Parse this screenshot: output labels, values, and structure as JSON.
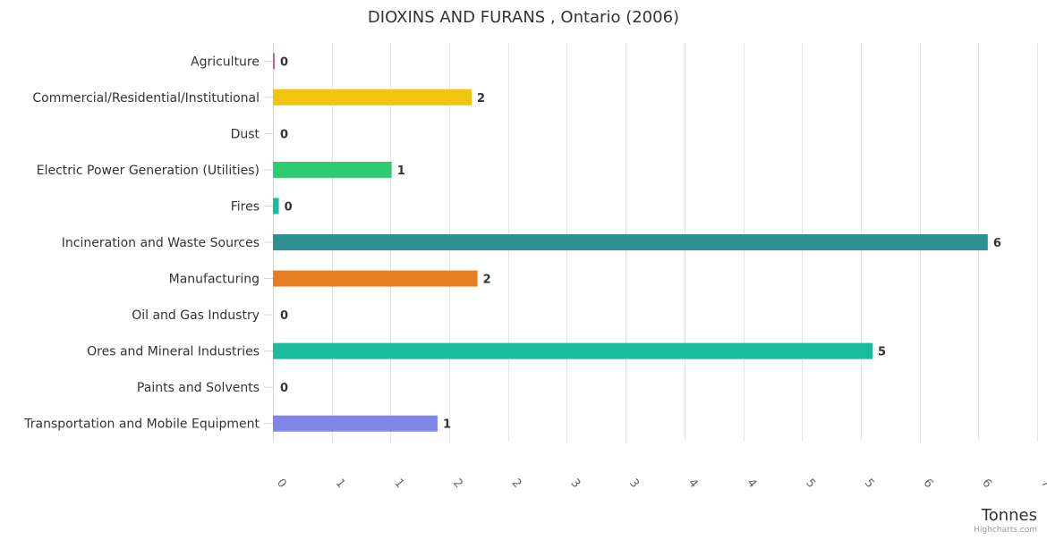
{
  "chart_data": {
    "type": "bar",
    "orientation": "horizontal",
    "title": "DIOXINS AND FURANS , Ontario (2006)",
    "xlabel": "Tonnes",
    "ylabel": "",
    "xlim": [
      0,
      6.5
    ],
    "x_ticks": [
      0,
      0.5,
      1,
      1.5,
      2,
      2.5,
      3,
      3.5,
      4,
      4.5,
      5,
      5.5,
      6,
      6.5
    ],
    "x_tick_labels": [
      "0",
      "1",
      "1",
      "2",
      "2",
      "3",
      "3",
      "4",
      "4",
      "5",
      "5",
      "6",
      "6",
      "7"
    ],
    "grid": true,
    "legend": false,
    "categories": [
      "Agriculture",
      "Commercial/Residential/Institutional",
      "Dust",
      "Electric Power Generation (Utilities)",
      "Fires",
      "Incineration and Waste Sources",
      "Manufacturing",
      "Oil and Gas Industry",
      "Ores and Mineral Industries",
      "Paints and Solvents",
      "Transportation and Mobile Equipment"
    ],
    "values": [
      0.01,
      1.69,
      0,
      1.01,
      0.05,
      6.08,
      1.74,
      0,
      5.1,
      0,
      1.4
    ],
    "data_labels": [
      "0",
      "2",
      "0",
      "1",
      "0",
      "6",
      "2",
      "0",
      "5",
      "0",
      "1"
    ],
    "colors": [
      "#d85e8a",
      "#f1c40f",
      "#c0c0c0",
      "#2ecc71",
      "#1abc9c",
      "#2e9090",
      "#e67e22",
      "#c0c0c0",
      "#1abc9c",
      "#c0c0c0",
      "#7f86e8"
    ]
  },
  "credits": "Highcharts.com"
}
